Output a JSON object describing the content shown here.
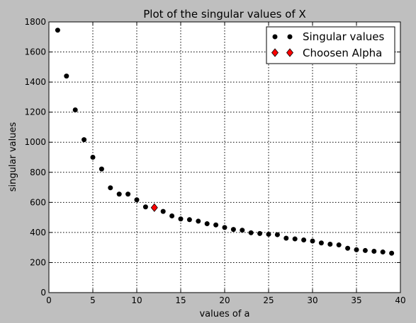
{
  "chart_data": {
    "type": "scatter",
    "title": "Plot of the singular values of X",
    "xlabel": "values of a",
    "ylabel": "singular values",
    "xlim": [
      0,
      40
    ],
    "ylim": [
      0,
      1800
    ],
    "xticks": [
      0,
      5,
      10,
      15,
      20,
      25,
      30,
      35,
      40
    ],
    "yticks": [
      0,
      200,
      400,
      600,
      800,
      1000,
      1200,
      1400,
      1600,
      1800
    ],
    "grid": true,
    "legend_position": "top-right",
    "series": [
      {
        "name": "Singular values",
        "marker": "circle",
        "color": "#000000",
        "x": [
          1,
          2,
          3,
          4,
          5,
          6,
          7,
          8,
          9,
          10,
          11,
          12,
          13,
          14,
          15,
          16,
          17,
          18,
          19,
          20,
          21,
          22,
          23,
          24,
          25,
          26,
          27,
          28,
          29,
          30,
          31,
          32,
          33,
          34,
          35,
          36,
          37,
          38,
          39
        ],
        "y": [
          1745,
          1440,
          1215,
          1017,
          900,
          822,
          697,
          655,
          655,
          617,
          570,
          565,
          540,
          510,
          490,
          485,
          475,
          458,
          450,
          433,
          420,
          415,
          398,
          393,
          388,
          385,
          362,
          357,
          350,
          343,
          330,
          322,
          317,
          295,
          285,
          280,
          275,
          270,
          262
        ]
      },
      {
        "name": "Choosen Alpha",
        "marker": "diamond",
        "color": "#ff0000",
        "x": [
          12
        ],
        "y": [
          565
        ]
      }
    ]
  }
}
